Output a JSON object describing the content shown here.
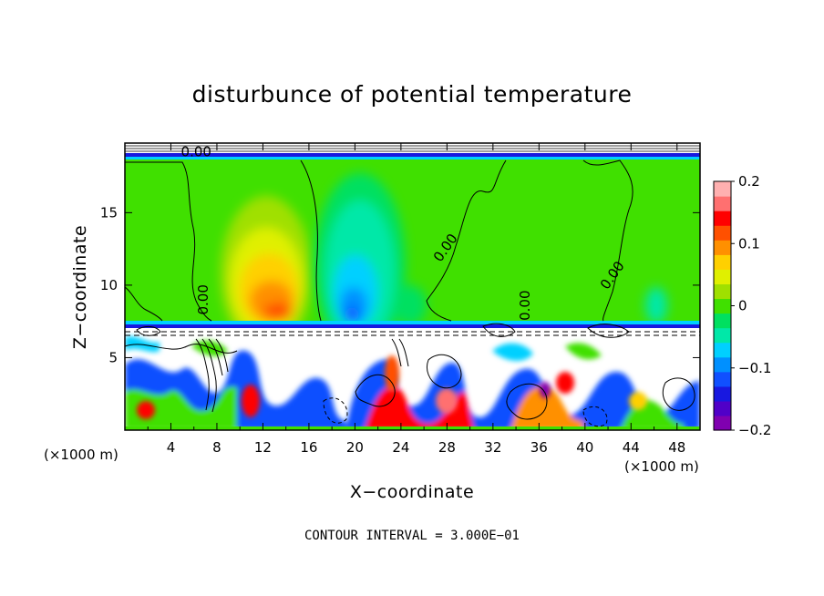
{
  "chart_data": {
    "type": "heatmap",
    "title": "disturbunce of potential temperature",
    "xlabel": "X−coordinate",
    "ylabel": "Z−coordinate",
    "x_unit": "(×1000 m)",
    "x_unit_right": "(×1000 m)",
    "xlim": [
      0,
      50
    ],
    "ylim": [
      0,
      19.8
    ],
    "x_ticks": [
      4,
      8,
      12,
      16,
      20,
      24,
      28,
      32,
      36,
      40,
      44,
      48
    ],
    "x_tick_labels": [
      "4",
      "8",
      "12",
      "16",
      "20",
      "24",
      "28",
      "32",
      "36",
      "40",
      "44",
      "48"
    ],
    "y_ticks": [
      5,
      10,
      15
    ],
    "y_tick_labels": [
      "5",
      "10",
      "15"
    ],
    "colorbar": {
      "range": [
        -0.2,
        0.2
      ],
      "tick_values": [
        0.2,
        0.1,
        0,
        -0.1,
        -0.2
      ],
      "tick_labels": [
        "0.2",
        "0.1",
        "0",
        "−0.1",
        "−0.2"
      ],
      "colors": [
        "#8000b0",
        "#5000c8",
        "#1818e0",
        "#1050ff",
        "#0090ff",
        "#00d0ff",
        "#00e8a8",
        "#00e060",
        "#40e000",
        "#a0e000",
        "#e0f000",
        "#ffd000",
        "#ff9000",
        "#ff5000",
        "#ff0000",
        "#ff7070",
        "#ffb0b0"
      ]
    },
    "contour_labels": [
      {
        "text": "0.00",
        "x": 6.2,
        "y": 18.9,
        "rotate": 0
      },
      {
        "text": "0.00",
        "x": 7.2,
        "y": 9.0,
        "rotate": -90
      },
      {
        "text": "0.00",
        "x": 28.2,
        "y": 12.4,
        "rotate": -55
      },
      {
        "text": "0.00",
        "x": 35.2,
        "y": 8.6,
        "rotate": -90
      },
      {
        "text": "0.00",
        "x": 42.7,
        "y": 10.5,
        "rotate": -55
      }
    ],
    "annotation": "CONTOUR INTERVAL = 3.000E−01"
  }
}
